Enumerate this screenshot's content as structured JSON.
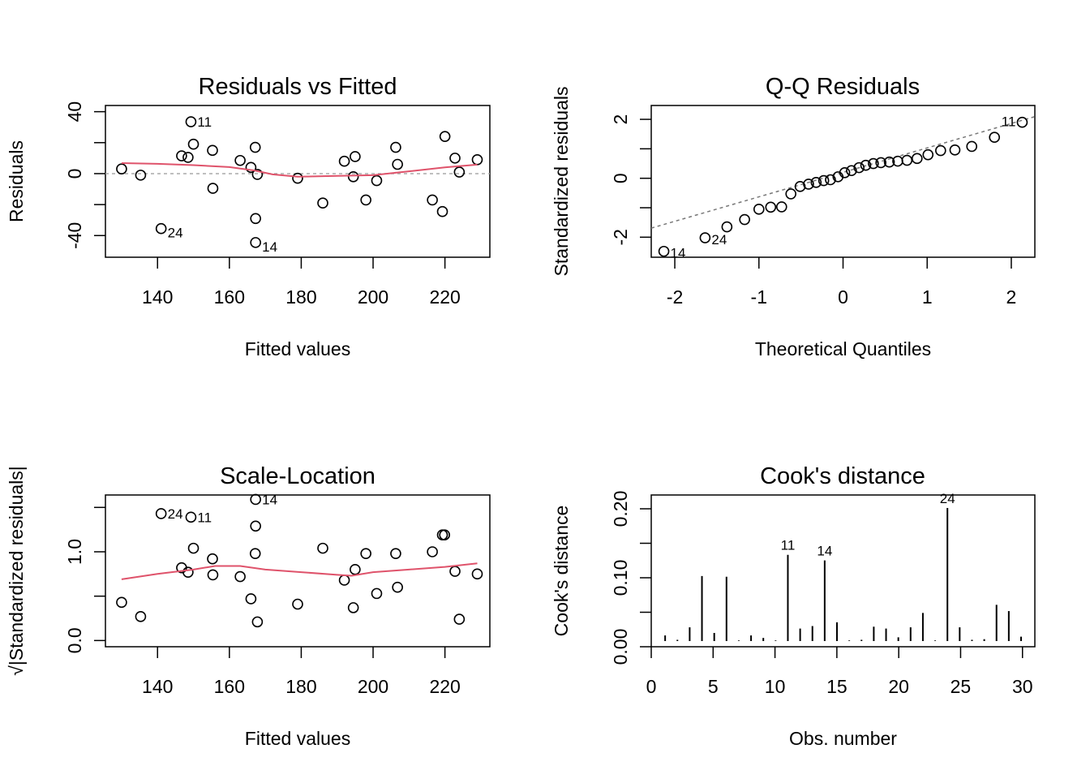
{
  "chart_data": [
    {
      "type": "scatter",
      "title": "Residuals vs Fitted",
      "xlabel": "Fitted values",
      "ylabel": "Residuals",
      "xlim": [
        125.5,
        232.5
      ],
      "ylim": [
        -54,
        44
      ],
      "xticks": [
        140,
        160,
        180,
        200,
        220
      ],
      "yticks": [
        -40,
        -20,
        0,
        20,
        40
      ],
      "ytick_labels": [
        "-40",
        "",
        "0",
        "",
        "40"
      ],
      "reference_line": 0,
      "points": [
        {
          "obs": 1,
          "x": 130.0,
          "y": 3.0
        },
        {
          "obs": 2,
          "x": 135.3,
          "y": -1.0
        },
        {
          "obs": 3,
          "x": 146.7,
          "y": 11.5
        },
        {
          "obs": 4,
          "x": 148.5,
          "y": 10.5
        },
        {
          "obs": 5,
          "x": 150.0,
          "y": 19.0
        },
        {
          "obs": 6,
          "x": 155.3,
          "y": 15.0
        },
        {
          "obs": 7,
          "x": 155.4,
          "y": -9.5
        },
        {
          "obs": 8,
          "x": 163.0,
          "y": 8.5
        },
        {
          "obs": 9,
          "x": 166.0,
          "y": 4.0
        },
        {
          "obs": 10,
          "x": 167.2,
          "y": 17.0
        },
        {
          "obs": 11,
          "x": 149.3,
          "y": 33.5
        },
        {
          "obs": 12,
          "x": 167.3,
          "y": -29.0
        },
        {
          "obs": 13,
          "x": 167.8,
          "y": -0.5
        },
        {
          "obs": 14,
          "x": 167.3,
          "y": -44.5
        },
        {
          "obs": 15,
          "x": 179.0,
          "y": -3.0
        },
        {
          "obs": 16,
          "x": 186.0,
          "y": -19.0
        },
        {
          "obs": 17,
          "x": 192.0,
          "y": 8.0
        },
        {
          "obs": 18,
          "x": 194.5,
          "y": -2.0
        },
        {
          "obs": 19,
          "x": 195.0,
          "y": 11.0
        },
        {
          "obs": 20,
          "x": 198.0,
          "y": -17.0
        },
        {
          "obs": 21,
          "x": 201.0,
          "y": -4.5
        },
        {
          "obs": 22,
          "x": 206.3,
          "y": 17.0
        },
        {
          "obs": 23,
          "x": 206.8,
          "y": 6.0
        },
        {
          "obs": 24,
          "x": 141.0,
          "y": -35.5
        },
        {
          "obs": 25,
          "x": 216.5,
          "y": -17.0
        },
        {
          "obs": 26,
          "x": 219.3,
          "y": -24.5
        },
        {
          "obs": 27,
          "x": 220.0,
          "y": 24.0
        },
        {
          "obs": 28,
          "x": 222.8,
          "y": 10.0
        },
        {
          "obs": 29,
          "x": 224.0,
          "y": 1.0
        },
        {
          "obs": 30,
          "x": 229.0,
          "y": 9.0
        }
      ],
      "labeled_points": [
        "11",
        "24",
        "14"
      ],
      "smoother": {
        "x": [
          130,
          140,
          150,
          160,
          167,
          172,
          179,
          190,
          200,
          210,
          220,
          229
        ],
        "y": [
          6.8,
          6.3,
          5.5,
          4.2,
          2.0,
          -0.5,
          -2.0,
          -1.5,
          -1.0,
          1.5,
          4.0,
          5.8
        ]
      }
    },
    {
      "type": "scatter",
      "title": "Q-Q Residuals",
      "xlabel": "Theoretical Quantiles",
      "ylabel": "Standardized residuals",
      "xlim": [
        -2.28,
        2.28
      ],
      "ylim": [
        -2.68,
        2.47
      ],
      "xticks": [
        -2,
        -1,
        0,
        1,
        2
      ],
      "yticks": [
        -2,
        -1,
        0,
        1,
        2
      ],
      "ytick_labels": [
        "-2",
        "",
        "0",
        "",
        "2"
      ],
      "reference_line": {
        "intercept": 0.2,
        "slope": 0.83
      },
      "points": [
        {
          "x": -2.13,
          "y": -2.48,
          "label": "14"
        },
        {
          "x": -1.64,
          "y": -2.02,
          "label": "24"
        },
        {
          "x": -1.38,
          "y": -1.65
        },
        {
          "x": -1.17,
          "y": -1.4
        },
        {
          "x": -1.0,
          "y": -1.05
        },
        {
          "x": -0.86,
          "y": -0.98
        },
        {
          "x": -0.73,
          "y": -0.97
        },
        {
          "x": -0.62,
          "y": -0.53
        },
        {
          "x": -0.51,
          "y": -0.28
        },
        {
          "x": -0.41,
          "y": -0.2
        },
        {
          "x": -0.32,
          "y": -0.14
        },
        {
          "x": -0.23,
          "y": -0.08
        },
        {
          "x": -0.15,
          "y": -0.05
        },
        {
          "x": -0.06,
          "y": 0.05
        },
        {
          "x": 0.02,
          "y": 0.19
        },
        {
          "x": 0.1,
          "y": 0.26
        },
        {
          "x": 0.19,
          "y": 0.36
        },
        {
          "x": 0.27,
          "y": 0.44
        },
        {
          "x": 0.36,
          "y": 0.5
        },
        {
          "x": 0.45,
          "y": 0.53
        },
        {
          "x": 0.55,
          "y": 0.55
        },
        {
          "x": 0.65,
          "y": 0.58
        },
        {
          "x": 0.76,
          "y": 0.61
        },
        {
          "x": 0.88,
          "y": 0.67
        },
        {
          "x": 1.01,
          "y": 0.8
        },
        {
          "x": 1.16,
          "y": 0.94
        },
        {
          "x": 1.33,
          "y": 0.96
        },
        {
          "x": 1.53,
          "y": 1.08
        },
        {
          "x": 1.8,
          "y": 1.39
        },
        {
          "x": 2.13,
          "y": 1.9,
          "label": "11"
        }
      ]
    },
    {
      "type": "scatter",
      "title": "Scale-Location",
      "xlabel": "Fitted values",
      "ylabel": "√|Standardized residuals|",
      "xlim": [
        125.5,
        232.5
      ],
      "ylim": [
        -0.07,
        1.64
      ],
      "xticks": [
        140,
        160,
        180,
        200,
        220
      ],
      "yticks": [
        0.0,
        0.5,
        1.0,
        1.5
      ],
      "ytick_labels": [
        "0.0",
        "",
        "1.0",
        ""
      ],
      "points": [
        {
          "x": 130.0,
          "y": 0.43
        },
        {
          "x": 135.3,
          "y": 0.27
        },
        {
          "x": 146.7,
          "y": 0.82
        },
        {
          "x": 148.5,
          "y": 0.77
        },
        {
          "x": 150.0,
          "y": 1.04
        },
        {
          "x": 155.3,
          "y": 0.92
        },
        {
          "x": 155.4,
          "y": 0.74
        },
        {
          "x": 163.0,
          "y": 0.72
        },
        {
          "x": 166.0,
          "y": 0.47
        },
        {
          "x": 167.2,
          "y": 0.98
        },
        {
          "x": 149.3,
          "y": 1.39,
          "label": "11"
        },
        {
          "x": 167.3,
          "y": 1.29
        },
        {
          "x": 167.8,
          "y": 0.21
        },
        {
          "x": 167.3,
          "y": 1.59,
          "label": "14"
        },
        {
          "x": 179.0,
          "y": 0.41
        },
        {
          "x": 186.0,
          "y": 1.04
        },
        {
          "x": 192.0,
          "y": 0.68
        },
        {
          "x": 194.5,
          "y": 0.37
        },
        {
          "x": 195.0,
          "y": 0.8
        },
        {
          "x": 198.0,
          "y": 0.98
        },
        {
          "x": 201.0,
          "y": 0.53
        },
        {
          "x": 206.3,
          "y": 0.98
        },
        {
          "x": 206.8,
          "y": 0.6
        },
        {
          "x": 141.0,
          "y": 1.43,
          "label": "24"
        },
        {
          "x": 216.5,
          "y": 1.0
        },
        {
          "x": 219.3,
          "y": 1.19
        },
        {
          "x": 219.9,
          "y": 1.19
        },
        {
          "x": 222.8,
          "y": 0.78
        },
        {
          "x": 224.0,
          "y": 0.24
        },
        {
          "x": 229.0,
          "y": 0.75
        }
      ],
      "smoother": {
        "x": [
          130,
          140,
          150,
          156,
          163,
          170,
          180,
          190,
          194,
          200,
          210,
          220,
          229
        ],
        "y": [
          0.69,
          0.75,
          0.8,
          0.84,
          0.84,
          0.8,
          0.77,
          0.74,
          0.73,
          0.77,
          0.8,
          0.83,
          0.87
        ]
      }
    },
    {
      "type": "bar",
      "title": "Cook's distance",
      "xlabel": "Obs. number",
      "ylabel": "Cook's distance",
      "xlim": [
        0,
        31
      ],
      "ylim": [
        0,
        0.22
      ],
      "xticks": [
        0,
        5,
        10,
        15,
        20,
        25,
        30
      ],
      "yticks": [
        0.0,
        0.05,
        0.1,
        0.15,
        0.2
      ],
      "ytick_labels": [
        "0.00",
        "",
        "0.10",
        "",
        "0.20"
      ],
      "categories": [
        1,
        2,
        3,
        4,
        5,
        6,
        7,
        8,
        9,
        10,
        11,
        12,
        13,
        14,
        15,
        16,
        17,
        18,
        19,
        20,
        21,
        22,
        23,
        24,
        25,
        26,
        27,
        28,
        29,
        30
      ],
      "values": [
        0.009,
        0.002,
        0.022,
        0.104,
        0.013,
        0.103,
        0.001,
        0.009,
        0.005,
        0.001,
        0.138,
        0.02,
        0.024,
        0.129,
        0.03,
        0.001,
        0.002,
        0.023,
        0.02,
        0.006,
        0.022,
        0.045,
        0.001,
        0.213,
        0.022,
        0.002,
        0.003,
        0.058,
        0.048,
        0.007
      ],
      "labeled_bars": [
        "11",
        "14",
        "24"
      ]
    }
  ]
}
